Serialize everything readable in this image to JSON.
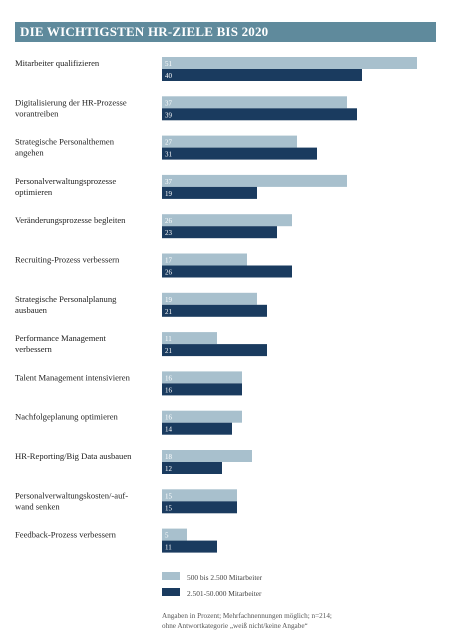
{
  "title": "DIE WICHTIGSTEN HR-ZIELE BIS 2020",
  "colors": {
    "header": "#5f8a9c",
    "series_small": "#a8c0cd",
    "series_large": "#1a3b5f"
  },
  "chart_data": {
    "type": "bar",
    "orientation": "horizontal",
    "title": "DIE WICHTIGSTEN HR-ZIELE BIS 2020",
    "categories": [
      [
        "Mitarbeiter qualifizieren"
      ],
      [
        "Digitalisierung der HR-Prozesse",
        "vorantreiben"
      ],
      [
        "Strategische Personalthemen",
        "angehen"
      ],
      [
        "Personalverwaltungsprozesse",
        "optimieren"
      ],
      [
        "Veränderungsprozesse begleiten"
      ],
      [
        "Recruiting-Prozess verbessern"
      ],
      [
        "Strategische Personalplanung",
        "ausbauen"
      ],
      [
        "Performance Management",
        "verbessern"
      ],
      [
        "Talent Management intensivieren"
      ],
      [
        "Nachfolgeplanung optimieren"
      ],
      [
        "HR-Reporting/Big Data ausbauen"
      ],
      [
        "Personalverwaltungskosten/-auf-",
        "wand senken"
      ],
      [
        "Feedback-Prozess verbessern"
      ]
    ],
    "series": [
      {
        "name": "500 bis 2.500 Mitarbeiter",
        "color": "#a8c0cd",
        "values": [
          51,
          37,
          27,
          37,
          26,
          17,
          19,
          11,
          16,
          16,
          18,
          15,
          5
        ]
      },
      {
        "name": "2.501-50.000 Mitarbeiter",
        "color": "#1a3b5f",
        "values": [
          40,
          39,
          31,
          19,
          23,
          26,
          21,
          21,
          16,
          14,
          12,
          15,
          11
        ]
      }
    ],
    "legend_position": "bottom-left",
    "grid": false,
    "notes": [
      "Angaben in Prozent; Mehrfachnennungen möglich; n=214;",
      "ohne Antwortkategorie „weiß nicht/keine Angabe“"
    ]
  }
}
